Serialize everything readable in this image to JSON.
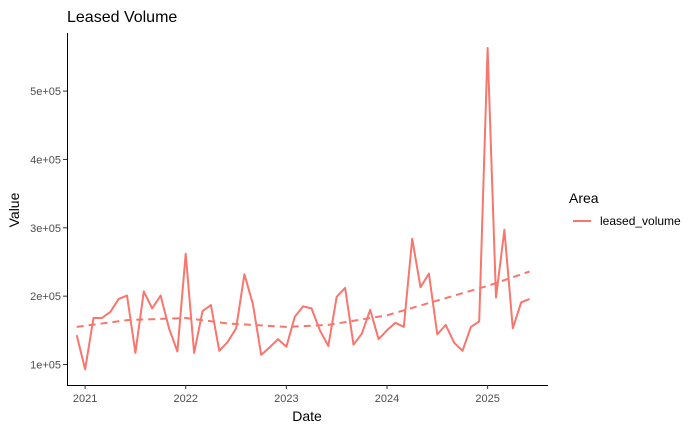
{
  "chart_data": {
    "type": "line",
    "title": "Leased Volume",
    "xlabel": "Date",
    "ylabel": "Value",
    "x_range": [
      2020.82,
      2025.6
    ],
    "ylim": [
      70000,
      585000
    ],
    "x_ticks": [
      {
        "value": 2021,
        "label": "2021"
      },
      {
        "value": 2022,
        "label": "2022"
      },
      {
        "value": 2023,
        "label": "2023"
      },
      {
        "value": 2024,
        "label": "2024"
      },
      {
        "value": 2025,
        "label": "2025"
      }
    ],
    "y_ticks": [
      {
        "value": 100000,
        "label": "1e+05"
      },
      {
        "value": 200000,
        "label": "2e+05"
      },
      {
        "value": 300000,
        "label": "3e+05"
      },
      {
        "value": 400000,
        "label": "4e+05"
      },
      {
        "value": 500000,
        "label": "5e+05"
      }
    ],
    "grid": false,
    "legend": {
      "title": "Area",
      "position": "right"
    },
    "series": [
      {
        "name": "leased_volume",
        "color": "#F8766D",
        "x": [
          "2020-12",
          "2021-01",
          "2021-02",
          "2021-03",
          "2021-04",
          "2021-05",
          "2021-06",
          "2021-07",
          "2021-08",
          "2021-09",
          "2021-10",
          "2021-11",
          "2021-12",
          "2022-01",
          "2022-02",
          "2022-03",
          "2022-04",
          "2022-05",
          "2022-06",
          "2022-07",
          "2022-08",
          "2022-09",
          "2022-10",
          "2022-11",
          "2022-12",
          "2023-01",
          "2023-02",
          "2023-03",
          "2023-04",
          "2023-05",
          "2023-06",
          "2023-07",
          "2023-08",
          "2023-09",
          "2023-10",
          "2023-11",
          "2023-12",
          "2024-01",
          "2024-02",
          "2024-03",
          "2024-04",
          "2024-05",
          "2024-06",
          "2024-07",
          "2024-08",
          "2024-09",
          "2024-10",
          "2024-11",
          "2024-12",
          "2025-01",
          "2025-02",
          "2025-03",
          "2025-04",
          "2025-05",
          "2025-06"
        ],
        "values": [
          143000,
          93000,
          168000,
          168000,
          177000,
          196000,
          201000,
          117000,
          207000,
          182000,
          201000,
          153000,
          119000,
          262000,
          117000,
          178000,
          187000,
          120000,
          133000,
          153000,
          232000,
          189000,
          114000,
          125000,
          137000,
          126000,
          170000,
          185000,
          182000,
          150000,
          127000,
          199000,
          212000,
          129000,
          145000,
          180000,
          137000,
          150000,
          161000,
          155000,
          284000,
          213000,
          233000,
          144000,
          158000,
          132000,
          120000,
          155000,
          163000,
          563000,
          198000,
          297000,
          153000,
          191000,
          196000
        ],
        "trend": {
          "x": [
            "2020-12",
            "2021-06",
            "2022-01",
            "2022-06",
            "2023-01",
            "2023-06",
            "2024-01",
            "2024-06",
            "2025-01",
            "2025-06"
          ],
          "values": [
            155000,
            165000,
            168000,
            160000,
            155000,
            158000,
            172000,
            190000,
            215000,
            236000
          ]
        }
      }
    ]
  }
}
